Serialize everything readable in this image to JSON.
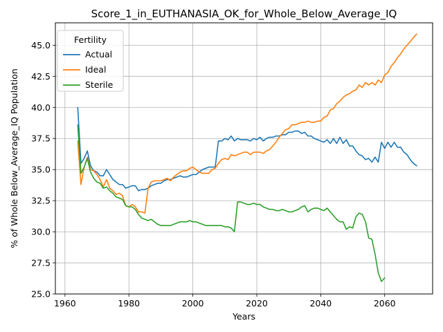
{
  "chart_data": {
    "type": "line",
    "title": "Score_1_in_EUTHANASIA_OK_for_Whole_Below_Average_IQ",
    "xlabel": "Years",
    "ylabel": "% of Whole Below_Average_IQ Population",
    "xlim": [
      1957,
      2075
    ],
    "ylim": [
      25.0,
      46.8
    ],
    "xticks": [
      1960,
      1980,
      2000,
      2020,
      2040,
      2060
    ],
    "yticks": [
      25.0,
      27.5,
      30.0,
      32.5,
      35.0,
      37.5,
      40.0,
      42.5,
      45.0
    ],
    "grid": true,
    "legend": {
      "title": "Fertility",
      "placement": "top-left"
    },
    "series": [
      {
        "name": "Actual",
        "color": "#1f77b4",
        "x": [
          1964,
          1965,
          1966,
          1967,
          1968,
          1969,
          1970,
          1971,
          1972,
          1973,
          1974,
          1975,
          1976,
          1977,
          1978,
          1979,
          1980,
          1981,
          1982,
          1983,
          1984,
          1985,
          1986,
          1987,
          1988,
          1989,
          1990,
          1991,
          1992,
          1993,
          1994,
          1995,
          1996,
          1997,
          1998,
          1999,
          2000,
          2001,
          2002,
          2003,
          2004,
          2005,
          2006,
          2007,
          2008,
          2009,
          2010,
          2011,
          2012,
          2013,
          2014,
          2015,
          2016,
          2017,
          2018,
          2019,
          2020,
          2021,
          2022,
          2023,
          2024,
          2025,
          2026,
          2027,
          2028,
          2029,
          2030,
          2031,
          2032,
          2033,
          2034,
          2035,
          2036,
          2037,
          2038,
          2039,
          2040,
          2041,
          2042,
          2043,
          2044,
          2045,
          2046,
          2047,
          2048,
          2049,
          2050,
          2051,
          2052,
          2053,
          2054,
          2055,
          2056,
          2057,
          2058,
          2059,
          2060,
          2061,
          2062,
          2063,
          2064,
          2065,
          2066,
          2067,
          2068,
          2069,
          2070
        ],
        "values": [
          40.0,
          35.5,
          35.9,
          36.5,
          35.3,
          34.9,
          34.8,
          34.5,
          34.5,
          35.0,
          34.6,
          34.2,
          34.0,
          33.8,
          33.8,
          33.5,
          33.6,
          33.7,
          33.7,
          33.3,
          33.4,
          33.4,
          33.5,
          33.7,
          33.8,
          33.9,
          33.9,
          34.1,
          34.2,
          34.2,
          34.3,
          34.4,
          34.5,
          34.4,
          34.4,
          34.5,
          34.6,
          34.6,
          34.8,
          35.0,
          35.1,
          35.2,
          35.2,
          35.2,
          37.3,
          37.3,
          37.5,
          37.4,
          37.7,
          37.3,
          37.5,
          37.4,
          37.4,
          37.4,
          37.3,
          37.5,
          37.4,
          37.6,
          37.3,
          37.5,
          37.6,
          37.6,
          37.7,
          37.7,
          37.8,
          37.8,
          38.0,
          38.0,
          38.1,
          38.1,
          37.9,
          38.0,
          37.7,
          37.7,
          37.5,
          37.4,
          37.3,
          37.2,
          37.4,
          37.1,
          37.5,
          37.1,
          37.6,
          37.1,
          37.4,
          36.9,
          36.9,
          36.5,
          36.2,
          36.1,
          35.8,
          35.9,
          35.6,
          36.0,
          35.6,
          37.2,
          36.7,
          37.2,
          36.8,
          37.2,
          36.8,
          36.8,
          36.4,
          36.2,
          35.8,
          35.5,
          35.3
        ]
      },
      {
        "name": "Ideal",
        "color": "#ff7f0e",
        "x": [
          1964,
          1965,
          1966,
          1967,
          1968,
          1969,
          1970,
          1971,
          1972,
          1973,
          1974,
          1975,
          1976,
          1977,
          1978,
          1979,
          1980,
          1981,
          1982,
          1983,
          1984,
          1985,
          1986,
          1987,
          1988,
          1989,
          1990,
          1991,
          1992,
          1993,
          1994,
          1995,
          1996,
          1997,
          1998,
          1999,
          2000,
          2001,
          2002,
          2003,
          2004,
          2005,
          2006,
          2007,
          2008,
          2009,
          2010,
          2011,
          2012,
          2013,
          2014,
          2015,
          2016,
          2017,
          2018,
          2019,
          2020,
          2021,
          2022,
          2023,
          2024,
          2025,
          2026,
          2027,
          2028,
          2029,
          2030,
          2031,
          2032,
          2033,
          2034,
          2035,
          2036,
          2037,
          2038,
          2039,
          2040,
          2041,
          2042,
          2043,
          2044,
          2045,
          2046,
          2047,
          2048,
          2049,
          2050,
          2051,
          2052,
          2053,
          2054,
          2055,
          2056,
          2057,
          2058,
          2059,
          2060,
          2061,
          2062,
          2063,
          2064,
          2065,
          2066,
          2067,
          2068,
          2069,
          2070
        ],
        "values": [
          37.3,
          33.8,
          35.2,
          36.0,
          35.0,
          34.9,
          34.6,
          34.2,
          33.6,
          34.2,
          33.5,
          33.3,
          33.0,
          33.1,
          32.9,
          32.1,
          32.0,
          32.2,
          32.0,
          31.6,
          31.6,
          31.5,
          33.5,
          34.0,
          34.1,
          34.1,
          34.1,
          34.2,
          34.3,
          34.1,
          34.4,
          34.6,
          34.8,
          34.9,
          34.9,
          35.1,
          35.2,
          35.0,
          34.8,
          34.7,
          34.7,
          34.7,
          35.0,
          35.1,
          35.5,
          35.8,
          35.9,
          35.8,
          36.2,
          36.1,
          36.2,
          36.3,
          36.4,
          36.4,
          36.2,
          36.4,
          36.4,
          36.4,
          36.3,
          36.5,
          36.6,
          36.9,
          37.2,
          37.6,
          37.9,
          38.2,
          38.3,
          38.6,
          38.6,
          38.7,
          38.8,
          38.8,
          38.9,
          38.8,
          38.8,
          38.9,
          38.9,
          39.2,
          39.3,
          39.8,
          39.9,
          40.3,
          40.5,
          40.8,
          41.0,
          41.1,
          41.3,
          41.4,
          41.8,
          41.6,
          42.0,
          41.8,
          42.0,
          41.8,
          42.2,
          42.0,
          42.6,
          42.8,
          43.3,
          43.6,
          44.0,
          44.3,
          44.7,
          45.0,
          45.3,
          45.6,
          45.9
        ]
      },
      {
        "name": "Sterile",
        "color": "#2ca02c",
        "x": [
          1964,
          1965,
          1966,
          1967,
          1968,
          1969,
          1970,
          1971,
          1972,
          1973,
          1974,
          1975,
          1976,
          1977,
          1978,
          1979,
          1980,
          1981,
          1982,
          1983,
          1984,
          1985,
          1986,
          1987,
          1988,
          1989,
          1990,
          1991,
          1992,
          1993,
          1994,
          1995,
          1996,
          1997,
          1998,
          1999,
          2000,
          2001,
          2002,
          2003,
          2004,
          2005,
          2006,
          2007,
          2008,
          2009,
          2010,
          2011,
          2012,
          2013,
          2014,
          2015,
          2016,
          2017,
          2018,
          2019,
          2020,
          2021,
          2022,
          2023,
          2024,
          2025,
          2026,
          2027,
          2028,
          2029,
          2030,
          2031,
          2032,
          2033,
          2034,
          2035,
          2036,
          2037,
          2038,
          2039,
          2040,
          2041,
          2042,
          2043,
          2044,
          2045,
          2046,
          2047,
          2048,
          2049,
          2050,
          2051,
          2052,
          2053,
          2054,
          2055,
          2056,
          2057,
          2058,
          2059,
          2060
        ],
        "values": [
          38.6,
          34.7,
          35.2,
          35.9,
          34.8,
          34.3,
          34.0,
          33.9,
          33.5,
          33.6,
          33.3,
          33.1,
          32.8,
          32.7,
          32.6,
          32.1,
          32.0,
          32.0,
          31.8,
          31.4,
          31.1,
          31.0,
          30.9,
          31.0,
          30.8,
          30.6,
          30.5,
          30.5,
          30.5,
          30.5,
          30.6,
          30.7,
          30.8,
          30.8,
          30.8,
          30.9,
          30.8,
          30.8,
          30.7,
          30.6,
          30.5,
          30.5,
          30.5,
          30.5,
          30.5,
          30.5,
          30.4,
          30.4,
          30.3,
          30.0,
          32.4,
          32.4,
          32.3,
          32.2,
          32.2,
          32.3,
          32.2,
          32.2,
          32.0,
          31.9,
          31.8,
          31.8,
          31.7,
          31.7,
          31.8,
          31.7,
          31.6,
          31.6,
          31.7,
          31.8,
          32.0,
          32.1,
          31.6,
          31.8,
          31.9,
          31.9,
          31.8,
          31.7,
          31.9,
          31.6,
          31.3,
          31.0,
          30.8,
          30.8,
          30.2,
          30.4,
          30.3,
          31.2,
          31.5,
          31.4,
          30.8,
          29.5,
          29.4,
          28.2,
          26.7,
          26.0,
          26.3
        ]
      }
    ]
  }
}
